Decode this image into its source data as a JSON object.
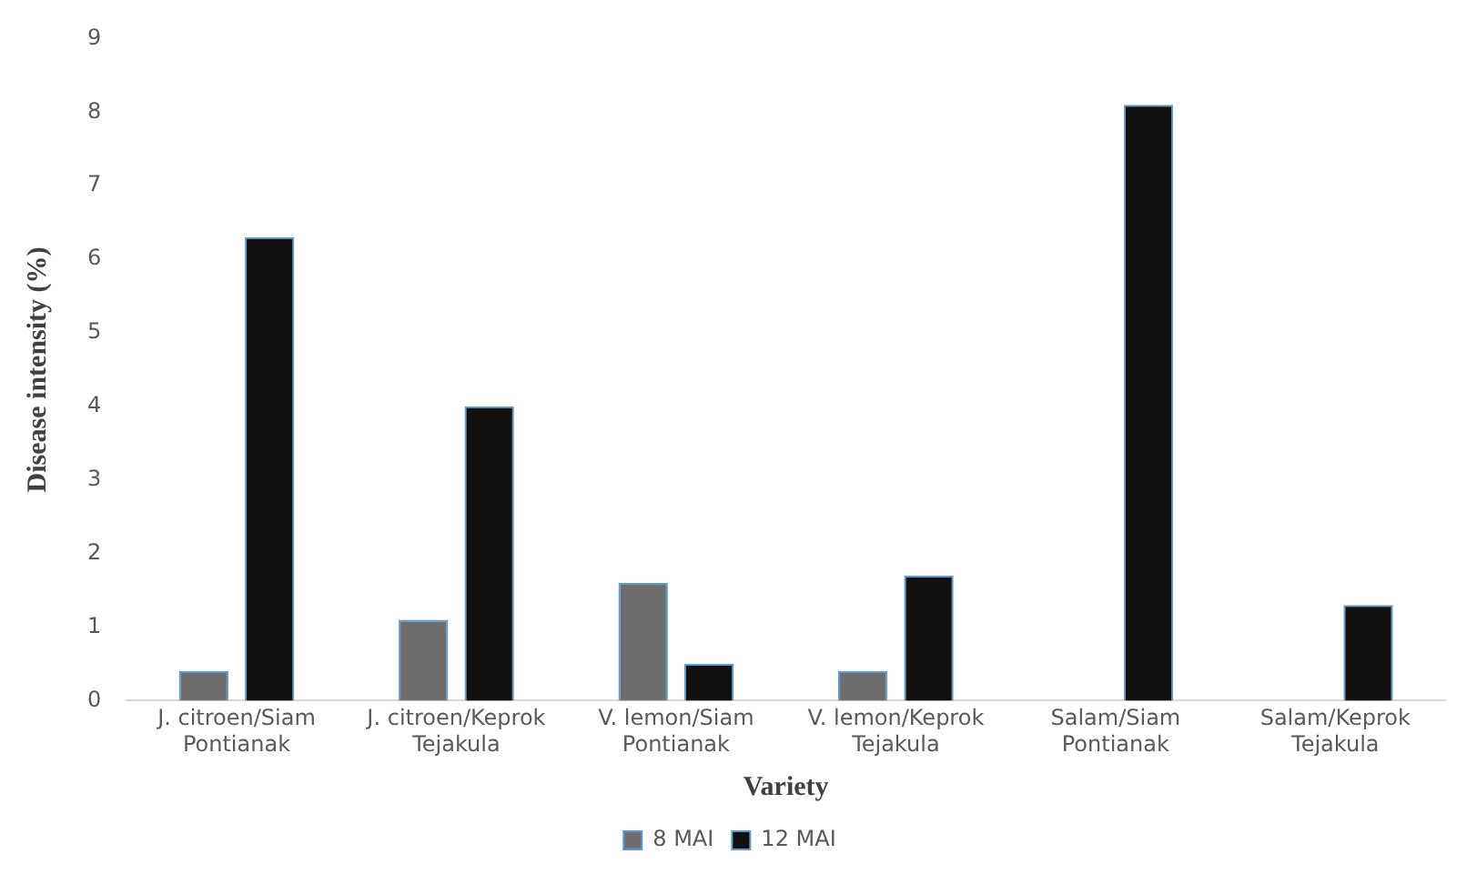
{
  "chart_data": {
    "type": "bar",
    "xlabel": "Variety",
    "ylabel": "Disease intensity (%)",
    "categories": [
      [
        "J. citroen/Siam",
        "Pontianak"
      ],
      [
        "J. citroen/Keprok",
        "Tejakula"
      ],
      [
        "V. lemon/Siam",
        "Pontianak"
      ],
      [
        "V. lemon/Keprok",
        "Tejakula"
      ],
      [
        "Salam/Siam",
        "Pontianak"
      ],
      [
        "Salam/Keprok",
        "Tejakula"
      ]
    ],
    "series": [
      {
        "name": "8 MAI",
        "color": "#6e6e6e",
        "values": [
          0.4,
          1.1,
          1.6,
          0.4,
          0,
          0
        ]
      },
      {
        "name": "12 MAI",
        "color": "#111111",
        "values": [
          6.3,
          4.0,
          0.5,
          1.7,
          8.1,
          1.3
        ]
      }
    ],
    "ylim": [
      0,
      9
    ],
    "yticks": [
      0,
      1,
      2,
      3,
      4,
      5,
      6,
      7,
      8,
      9
    ],
    "grid": false,
    "legend": "bottom"
  }
}
